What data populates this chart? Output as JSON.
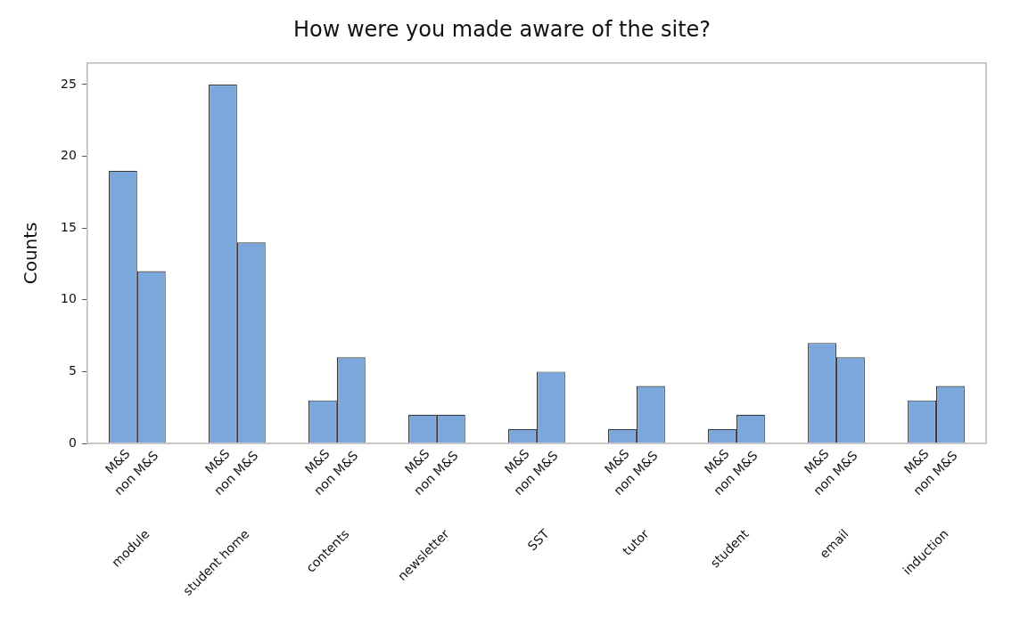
{
  "chart_data": {
    "type": "bar",
    "title": "How were you made aware of the site?",
    "ylabel": "Counts",
    "categories": [
      "module",
      "student home",
      "contents",
      "newsletter",
      "SST",
      "tutor",
      "student",
      "email",
      "induction"
    ],
    "series": [
      {
        "name": "M&S",
        "color": "#7ba7dc",
        "values": [
          19,
          25,
          3,
          2,
          1,
          1,
          1,
          7,
          3
        ]
      },
      {
        "name": "non M&S",
        "color": "#7ba7dc",
        "values": [
          12,
          14,
          6,
          2,
          5,
          4,
          2,
          6,
          4
        ]
      }
    ],
    "ylim": [
      0,
      26.5
    ],
    "yticks": [
      0,
      5,
      10,
      15,
      20,
      25
    ]
  }
}
